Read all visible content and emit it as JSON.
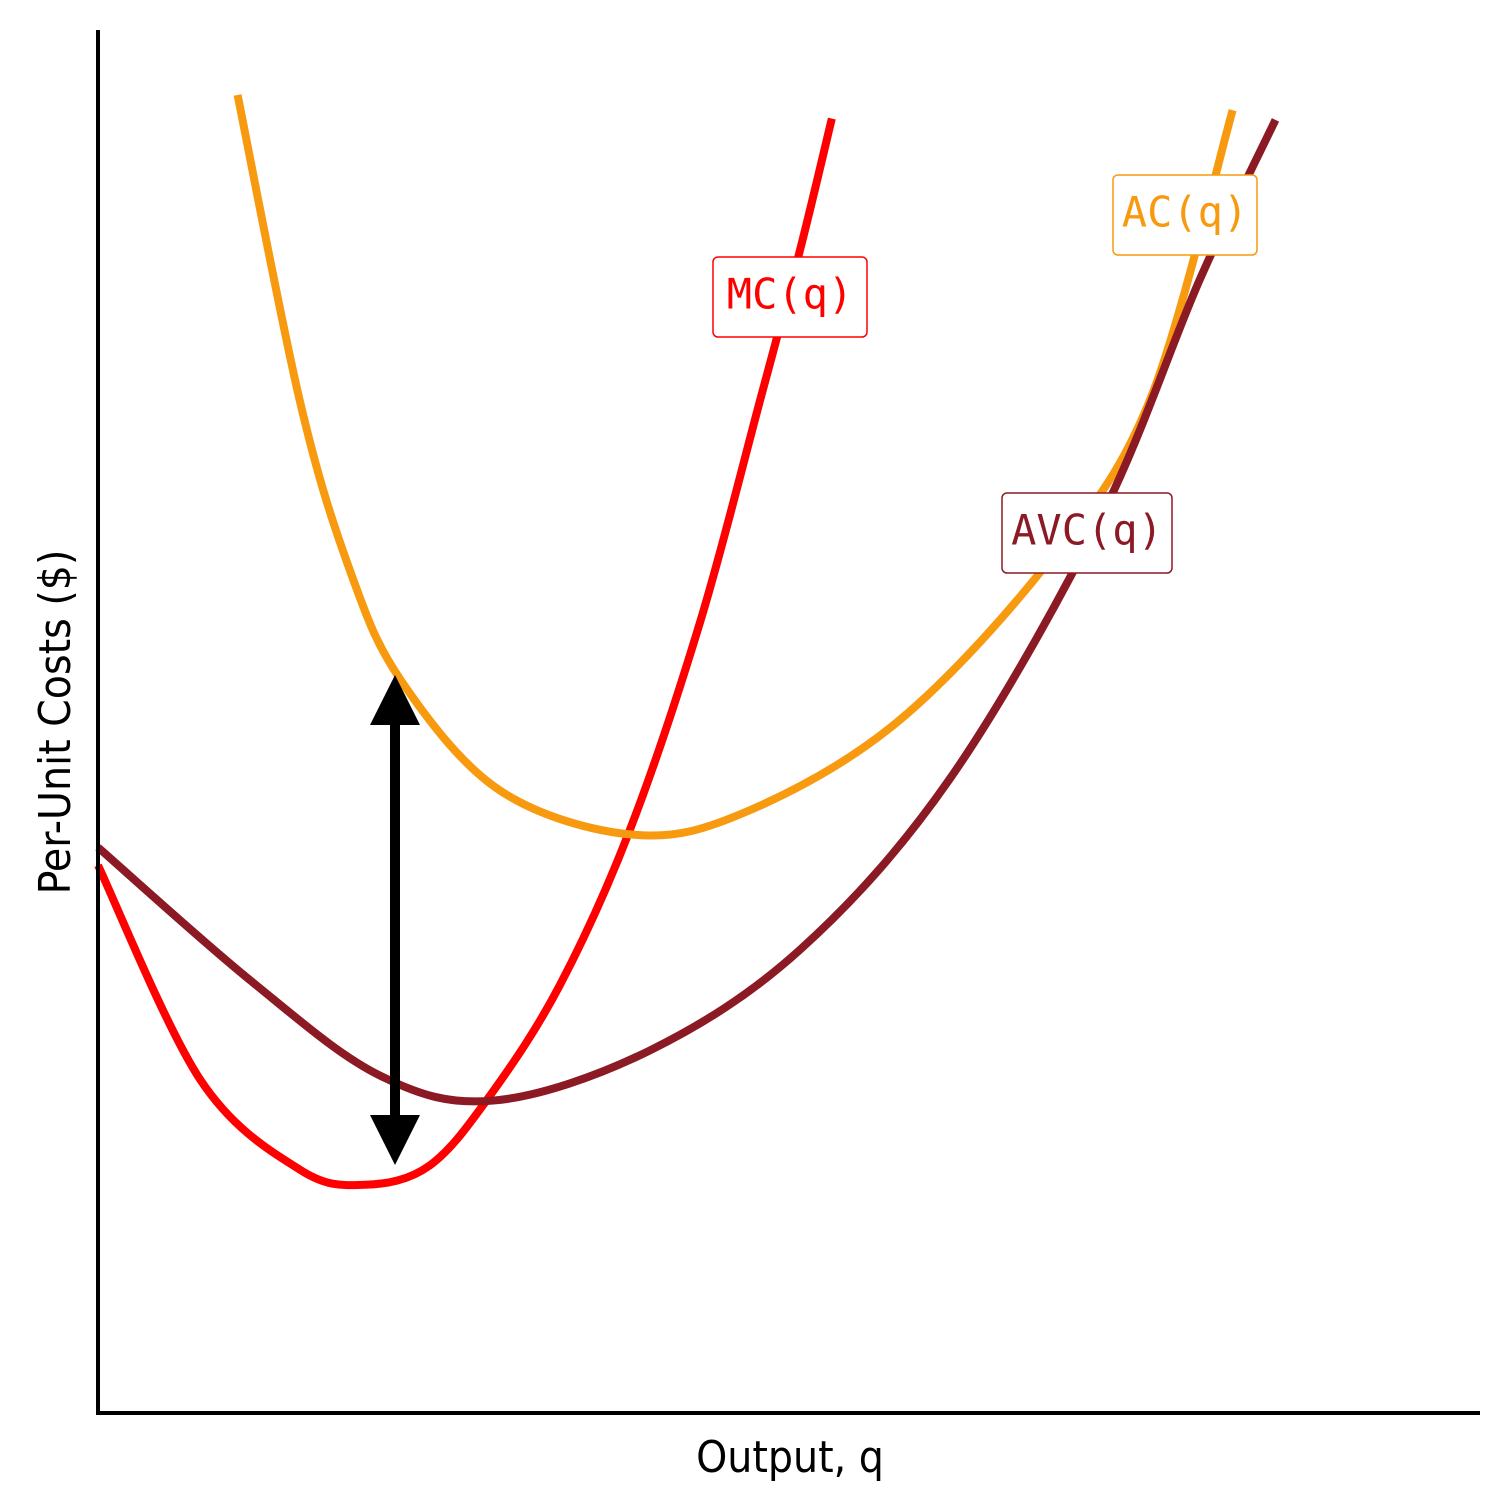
{
  "chart_data": {
    "type": "line",
    "x_label": "Output, q",
    "y_label": "Per-Unit Costs ($)",
    "xlim": [
      0,
      10
    ],
    "ylim": [
      0,
      10
    ],
    "series": [
      {
        "name": "MC(q)",
        "color": "#ff0000",
        "x": [
          0,
          0.74,
          1.46,
          1.93,
          2.4,
          2.84,
          3.34,
          3.85,
          4.36,
          4.79,
          5.08,
          5.31
        ],
        "values": [
          3.96,
          2.41,
          1.76,
          1.65,
          1.79,
          2.3,
          3.09,
          4.22,
          5.73,
          7.32,
          8.41,
          9.36
        ]
      },
      {
        "name": "AC(q)",
        "color": "#f89a0f",
        "x": [
          1.01,
          1.46,
          1.82,
          2.19,
          2.91,
          3.89,
          4.72,
          5.8,
          6.89,
          7.61,
          8.21
        ],
        "values": [
          9.53,
          7.32,
          6.1,
          5.3,
          4.5,
          4.18,
          4.36,
          5.01,
          6.17,
          7.32,
          9.42
        ]
      },
      {
        "name": "AVC(q)",
        "color": "#8b1a24",
        "x": [
          0,
          1.1,
          2.04,
          2.87,
          3.99,
          5.08,
          6.16,
          7.25,
          7.97,
          8.52
        ],
        "values": [
          4.09,
          3.13,
          2.44,
          2.26,
          2.62,
          3.35,
          4.58,
          6.46,
          8.19,
          9.35
        ]
      }
    ]
  }
}
